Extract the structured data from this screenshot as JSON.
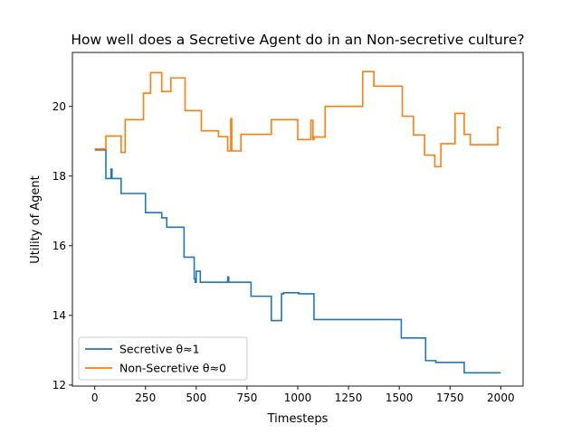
{
  "chart_data": {
    "type": "line",
    "title": "How well does a Secretive Agent do in an Non-secretive culture?",
    "xlabel": "Timesteps",
    "ylabel": "Utility of Agent",
    "xlim": [
      -110,
      2110
    ],
    "ylim": [
      11.97,
      21.55
    ],
    "xticks": [
      0,
      250,
      500,
      750,
      1000,
      1250,
      1500,
      1750,
      2000
    ],
    "yticks": [
      12,
      14,
      16,
      18,
      20
    ],
    "xtick_labels": [
      "0",
      "250",
      "500",
      "750",
      "1000",
      "1250",
      "1500",
      "1750",
      "2000"
    ],
    "ytick_labels": [
      "12",
      "14",
      "16",
      "18",
      "20"
    ],
    "grid": false,
    "legend_position": "lower-left",
    "series": [
      {
        "name": "Secretive θ≈1",
        "color": "#1f77b4",
        "step": true,
        "x": [
          0,
          55,
          80,
          85,
          130,
          250,
          330,
          355,
          440,
          490,
          495,
          500,
          510,
          520,
          655,
          660,
          770,
          870,
          920,
          930,
          1000,
          1005,
          1070,
          1080,
          1510,
          1630,
          1680,
          1820,
          2000
        ],
        "y": [
          18.75,
          17.93,
          18.2,
          17.93,
          17.5,
          16.95,
          16.8,
          16.53,
          15.67,
          15.05,
          14.95,
          15.27,
          15.27,
          14.95,
          15.1,
          14.95,
          14.55,
          13.85,
          14.62,
          14.65,
          14.65,
          14.62,
          14.62,
          13.88,
          13.35,
          12.7,
          12.65,
          12.35,
          12.35
        ]
      },
      {
        "name": "Non-Secretive θ≈0",
        "color": "#ff7f0e",
        "step": true,
        "x": [
          0,
          55,
          130,
          150,
          240,
          275,
          330,
          375,
          445,
          525,
          610,
          655,
          670,
          675,
          720,
          870,
          1000,
          1065,
          1075,
          1080,
          1135,
          1320,
          1375,
          1515,
          1570,
          1625,
          1675,
          1705,
          1775,
          1820,
          1850,
          1985,
          2000
        ],
        "y": [
          18.78,
          19.15,
          18.68,
          19.62,
          20.38,
          20.97,
          20.43,
          20.82,
          19.88,
          19.3,
          19.13,
          18.72,
          19.65,
          18.72,
          19.2,
          19.62,
          19.05,
          19.6,
          19.05,
          19.12,
          20.0,
          21.0,
          20.58,
          19.72,
          19.18,
          18.6,
          18.27,
          18.93,
          19.8,
          19.2,
          18.9,
          19.4,
          19.4
        ]
      }
    ]
  }
}
